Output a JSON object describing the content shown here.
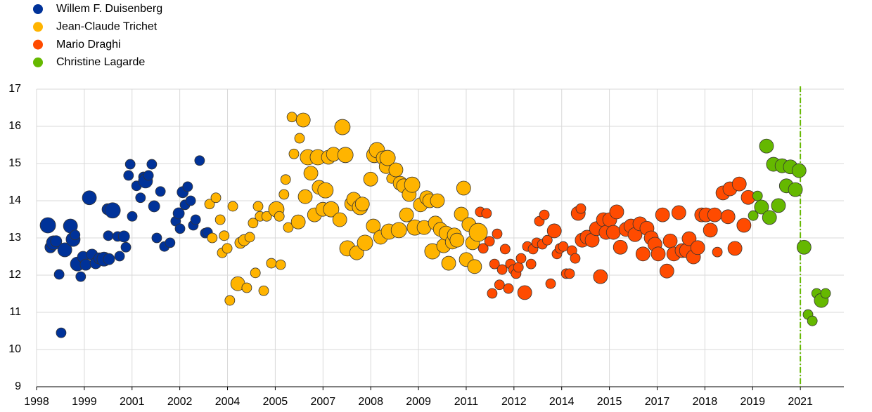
{
  "chart_data": {
    "type": "bubble",
    "grid": true,
    "legend": "top-left",
    "xlim": [
      1998,
      2022.31
    ],
    "ylim": [
      9,
      17
    ],
    "xticks": [
      {
        "value": 1998,
        "label": "1998"
      },
      {
        "value": 1999.4375,
        "label": "1999"
      },
      {
        "value": 2000.875,
        "label": "2001"
      },
      {
        "value": 2002.3125,
        "label": "2002"
      },
      {
        "value": 2003.75,
        "label": "2004"
      },
      {
        "value": 2005.1875,
        "label": "2005"
      },
      {
        "value": 2006.625,
        "label": "2007"
      },
      {
        "value": 2008.0625,
        "label": "2008"
      },
      {
        "value": 2009.5,
        "label": "2009"
      },
      {
        "value": 2010.9375,
        "label": "2011"
      },
      {
        "value": 2012.375,
        "label": "2012"
      },
      {
        "value": 2013.8125,
        "label": "2014"
      },
      {
        "value": 2015.25,
        "label": "2015"
      },
      {
        "value": 2016.6875,
        "label": "2017"
      },
      {
        "value": 2018.125,
        "label": "2018"
      },
      {
        "value": 2019.5625,
        "label": "2019"
      },
      {
        "value": 2021,
        "label": "2021"
      }
    ],
    "yticks": [
      9,
      10,
      11,
      12,
      13,
      14,
      15,
      16,
      17
    ],
    "vline": {
      "x": 2021,
      "color": "#65b800"
    },
    "series": [
      {
        "name": "Willem F. Duisenberg",
        "color": "#003299",
        "x": [
          1998.34,
          1998.42,
          1998.51,
          1998.59,
          1998.68,
          1998.74,
          1998.85,
          1999.02,
          1999.1,
          1999.16,
          1999.23,
          1999.33,
          1999.4,
          1999.48,
          1999.59,
          1999.67,
          1999.78,
          1999.89,
          2000.03,
          2000.14,
          2000.18,
          2000.29,
          2000.16,
          2000.44,
          2000.5,
          2000.63,
          2000.69,
          2000.82,
          2000.77,
          2000.88,
          2001.01,
          2001.13,
          2001.22,
          2001.28,
          2001.37,
          2001.47,
          2001.54,
          2001.62,
          2001.73,
          2001.85,
          2002.02,
          2002.19,
          2002.28,
          2002.32,
          2002.4,
          2002.47,
          2002.55,
          2002.64,
          2002.72,
          2002.79,
          2002.91,
          2003.08,
          2003.15
        ],
        "values": [
          13.34,
          12.75,
          12.87,
          12.91,
          12.02,
          10.45,
          12.68,
          13.32,
          12.96,
          13.08,
          12.3,
          11.96,
          12.49,
          12.28,
          14.08,
          12.55,
          12.32,
          12.45,
          12.43,
          13.77,
          12.43,
          13.74,
          13.06,
          13.04,
          12.51,
          13.04,
          12.75,
          14.98,
          14.68,
          13.58,
          14.4,
          14.08,
          14.64,
          14.53,
          14.68,
          14.98,
          13.85,
          13.0,
          14.25,
          12.77,
          12.87,
          13.45,
          13.66,
          13.25,
          14.23,
          13.89,
          14.38,
          14.0,
          13.34,
          13.49,
          15.08,
          13.13,
          13.15
        ],
        "sizes": [
          11,
          8,
          10,
          8,
          7,
          7,
          10,
          10,
          10,
          7,
          10,
          7,
          8,
          8,
          10,
          8,
          8,
          8,
          10,
          8,
          8,
          11,
          7,
          7,
          7,
          8,
          7,
          7,
          7,
          7,
          7,
          7,
          7,
          10,
          7,
          7,
          8,
          7,
          7,
          7,
          7,
          7,
          8,
          7,
          8,
          7,
          7,
          7,
          7,
          7,
          7,
          7,
          7
        ]
      },
      {
        "name": "Jean-Claude Trichet",
        "color": "#ffb400",
        "x": [
          2003.21,
          2003.29,
          2003.4,
          2003.53,
          2003.59,
          2003.65,
          2003.74,
          2003.82,
          2003.91,
          2004.06,
          2004.14,
          2004.25,
          2004.33,
          2004.42,
          2004.52,
          2004.59,
          2004.67,
          2004.73,
          2004.84,
          2004.93,
          2005.07,
          2005.22,
          2005.31,
          2005.35,
          2005.45,
          2005.5,
          2005.58,
          2005.69,
          2005.75,
          2005.88,
          2005.92,
          2006.03,
          2006.09,
          2006.17,
          2006.26,
          2006.37,
          2006.47,
          2006.51,
          2006.62,
          2006.7,
          2006.79,
          2006.87,
          2006.94,
          2007.13,
          2007.21,
          2007.3,
          2007.36,
          2007.49,
          2007.55,
          2007.64,
          2007.74,
          2007.81,
          2007.89,
          2008.06,
          2008.14,
          2008.17,
          2008.25,
          2008.36,
          2008.44,
          2008.53,
          2008.61,
          2008.57,
          2008.69,
          2008.82,
          2008.91,
          2008.95,
          2009.05,
          2009.14,
          2009.22,
          2009.31,
          2009.39,
          2009.56,
          2009.67,
          2009.75,
          2009.84,
          2009.92,
          2010.01,
          2010.07,
          2010.16,
          2010.26,
          2010.33,
          2010.41,
          2010.52,
          2010.58,
          2010.66,
          2010.79,
          2010.86,
          2010.94,
          2011.02,
          2011.13,
          2011.19,
          2011.3
        ],
        "values": [
          13.91,
          13.0,
          14.08,
          13.49,
          12.6,
          13.06,
          12.72,
          11.32,
          13.85,
          11.77,
          12.87,
          12.94,
          11.66,
          13.02,
          13.4,
          12.06,
          13.85,
          13.58,
          11.58,
          13.58,
          12.32,
          13.77,
          13.58,
          12.28,
          14.17,
          14.57,
          13.28,
          16.25,
          15.26,
          13.43,
          15.68,
          16.17,
          14.11,
          15.17,
          14.74,
          13.62,
          15.17,
          14.36,
          13.77,
          14.28,
          15.17,
          13.77,
          15.25,
          13.49,
          15.98,
          15.23,
          12.72,
          13.92,
          14.04,
          12.6,
          13.83,
          13.91,
          12.87,
          14.58,
          13.32,
          15.23,
          15.36,
          13.02,
          15.15,
          14.92,
          13.17,
          15.15,
          14.6,
          14.83,
          13.21,
          14.47,
          14.4,
          13.62,
          14.17,
          14.43,
          13.28,
          13.89,
          13.28,
          14.08,
          14.0,
          12.64,
          13.4,
          14.0,
          13.23,
          12.79,
          13.13,
          12.32,
          12.89,
          13.08,
          12.94,
          13.64,
          14.34,
          12.42,
          13.36,
          12.87,
          12.23,
          13.15
        ],
        "sizes": [
          7,
          7,
          7,
          7,
          7,
          7,
          7,
          7,
          7,
          10,
          8,
          8,
          7,
          7,
          7,
          7,
          7,
          7,
          7,
          7,
          7,
          11,
          7,
          7,
          7,
          7,
          7,
          7,
          7,
          10,
          7,
          10,
          10,
          11,
          10,
          10,
          11,
          10,
          10,
          11,
          10,
          11,
          10,
          10,
          11,
          11,
          11,
          10,
          10,
          10,
          11,
          10,
          11,
          10,
          10,
          11,
          11,
          10,
          10,
          10,
          11,
          11,
          7,
          10,
          11,
          10,
          10,
          10,
          10,
          11,
          11,
          10,
          10,
          10,
          10,
          11,
          10,
          10,
          10,
          10,
          10,
          10,
          10,
          10,
          10,
          10,
          10,
          10,
          10,
          10,
          10,
          13
        ]
      },
      {
        "name": "Mario Draghi",
        "color": "#ff4b00",
        "x": [
          2011.36,
          2011.45,
          2011.55,
          2011.64,
          2011.72,
          2011.79,
          2011.87,
          2011.94,
          2012.02,
          2012.11,
          2012.21,
          2012.27,
          2012.36,
          2012.44,
          2012.51,
          2012.59,
          2012.7,
          2012.78,
          2012.89,
          2012.95,
          2013.06,
          2013.14,
          2013.23,
          2013.29,
          2013.38,
          2013.48,
          2013.59,
          2013.67,
          2013.76,
          2013.86,
          2013.95,
          2014.05,
          2014.12,
          2014.22,
          2014.31,
          2014.39,
          2014.43,
          2014.58,
          2014.73,
          2014.86,
          2014.98,
          2015.07,
          2015.15,
          2015.26,
          2015.37,
          2015.47,
          2015.58,
          2015.75,
          2015.9,
          2016.02,
          2016.17,
          2016.26,
          2016.38,
          2016.51,
          2016.62,
          2016.72,
          2016.85,
          2016.98,
          2017.08,
          2017.19,
          2017.34,
          2017.44,
          2017.57,
          2017.65,
          2017.78,
          2017.91,
          2018.03,
          2018.16,
          2018.29,
          2018.42,
          2018.5,
          2018.67,
          2018.82,
          2018.88,
          2019.03,
          2019.16,
          2019.3,
          2019.43
        ],
        "values": [
          13.7,
          12.72,
          13.66,
          12.91,
          11.51,
          12.3,
          13.11,
          11.74,
          12.15,
          12.7,
          11.64,
          12.3,
          12.15,
          12.04,
          12.21,
          12.45,
          11.53,
          12.77,
          12.3,
          12.7,
          12.87,
          13.45,
          12.83,
          13.62,
          12.94,
          11.77,
          13.19,
          12.57,
          12.72,
          12.77,
          12.04,
          12.04,
          12.66,
          12.45,
          13.66,
          13.79,
          12.94,
          13.02,
          12.94,
          13.25,
          11.96,
          13.49,
          13.15,
          13.49,
          13.15,
          13.7,
          12.75,
          13.23,
          13.32,
          13.09,
          13.38,
          12.57,
          13.26,
          13.0,
          12.83,
          12.57,
          13.62,
          12.11,
          12.92,
          12.57,
          13.68,
          12.66,
          12.66,
          12.98,
          12.49,
          12.74,
          13.62,
          13.62,
          13.21,
          13.62,
          12.62,
          14.21,
          13.57,
          14.32,
          12.72,
          14.45,
          13.34,
          14.09
        ],
        "sizes": [
          7,
          7,
          7,
          7,
          7,
          7,
          7,
          7,
          7,
          7,
          7,
          7,
          7,
          7,
          7,
          7,
          10,
          7,
          7,
          7,
          7,
          7,
          7,
          7,
          7,
          7,
          10,
          7,
          7,
          7,
          7,
          7,
          7,
          7,
          10,
          7,
          10,
          10,
          10,
          10,
          10,
          10,
          10,
          10,
          10,
          10,
          10,
          10,
          10,
          10,
          10,
          10,
          10,
          10,
          10,
          10,
          10,
          10,
          10,
          10,
          10,
          10,
          10,
          10,
          10,
          10,
          10,
          10,
          10,
          10,
          7,
          10,
          10,
          10,
          10,
          10,
          10,
          10
        ]
      },
      {
        "name": "Christine Lagarde",
        "color": "#65b800",
        "x": [
          2019.58,
          2019.71,
          2019.83,
          2019.98,
          2020.07,
          2020.19,
          2020.34,
          2020.45,
          2020.58,
          2020.7,
          2020.85,
          2020.96,
          2021.11,
          2021.23,
          2021.36,
          2021.49,
          2021.63,
          2021.76
        ],
        "values": [
          13.6,
          14.13,
          13.83,
          15.47,
          13.55,
          14.98,
          13.87,
          14.94,
          14.4,
          14.91,
          14.3,
          14.81,
          12.75,
          10.94,
          10.77,
          11.51,
          11.32,
          11.51
        ],
        "sizes": [
          7,
          7,
          10,
          10,
          10,
          10,
          10,
          10,
          10,
          10,
          10,
          10,
          10,
          7,
          7,
          7,
          10,
          7
        ]
      }
    ]
  }
}
